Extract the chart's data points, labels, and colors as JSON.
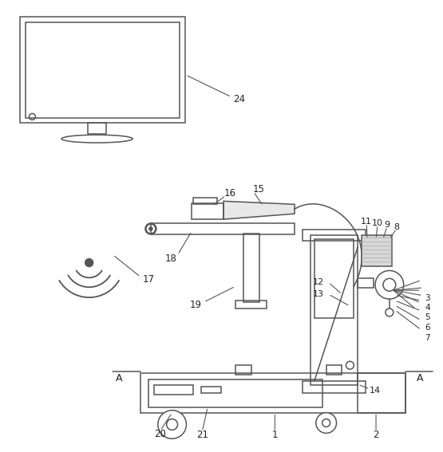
{
  "bg_color": "#ffffff",
  "line_color": "#4a4a4a",
  "line_width": 1.0,
  "fig_width": 5.55,
  "fig_height": 5.67
}
